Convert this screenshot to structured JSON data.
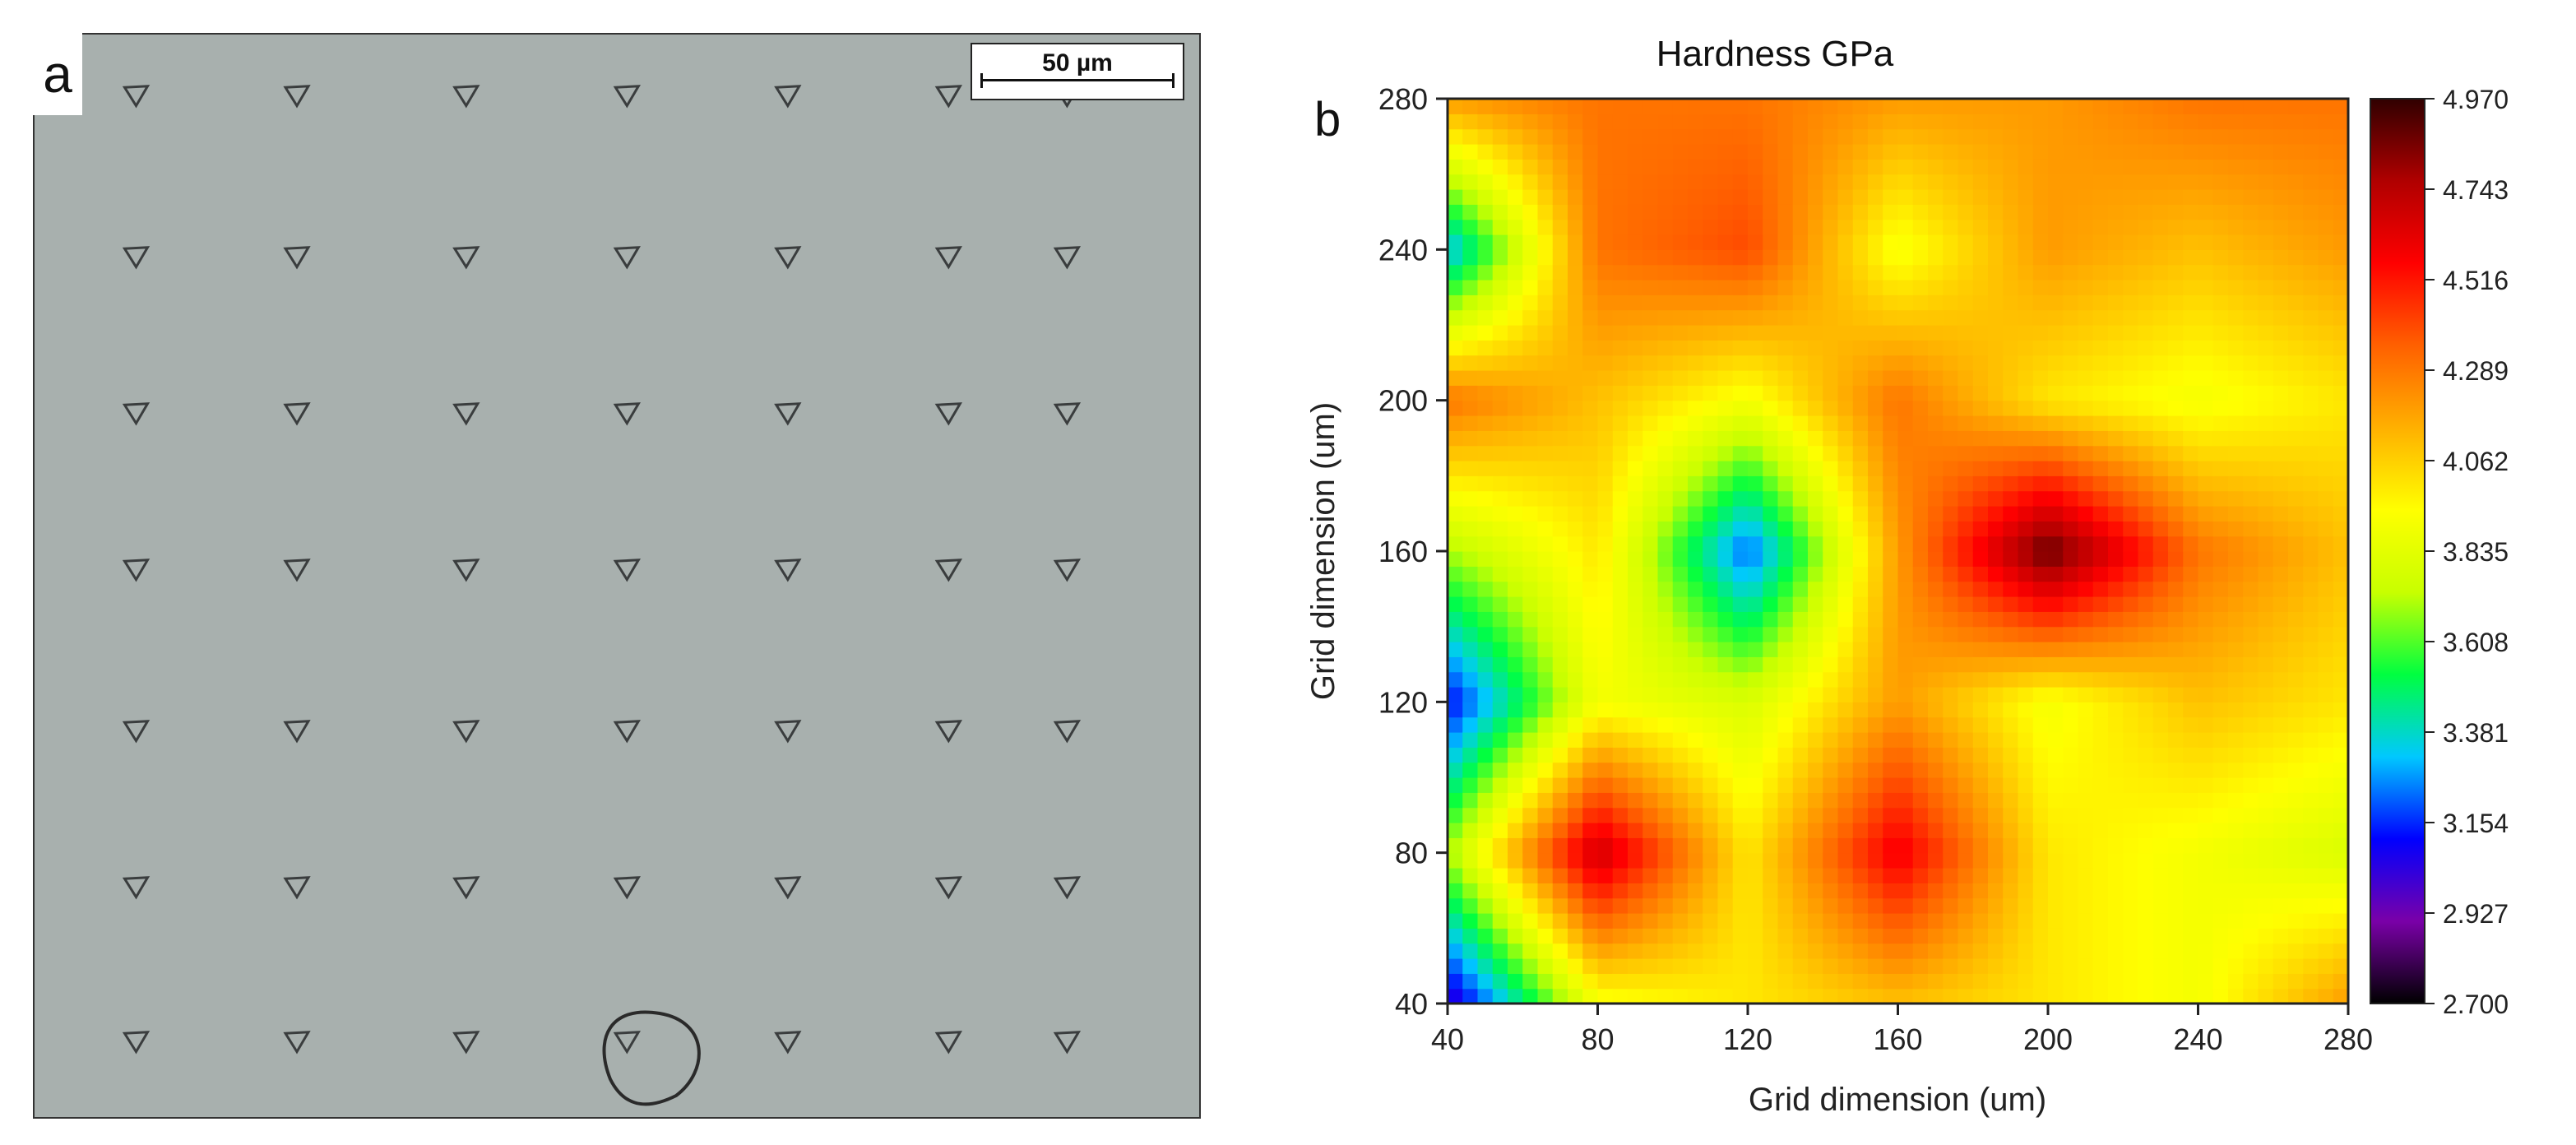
{
  "panel_a": {
    "label": "a",
    "scalebar_text": "50 µm"
  },
  "panel_b": {
    "label": "b"
  },
  "chart_data": {
    "type": "heatmap",
    "title": "Hardness GPa",
    "xlabel": "Grid dimension (um)",
    "ylabel": "Grid dimension (um)",
    "x": [
      40,
      80,
      120,
      160,
      200,
      240,
      280
    ],
    "y": [
      40,
      80,
      120,
      160,
      200,
      240,
      280
    ],
    "xlim": [
      40,
      280
    ],
    "ylim": [
      40,
      280
    ],
    "x_ticks": [
      "40",
      "80",
      "120",
      "160",
      "200",
      "240",
      "280"
    ],
    "y_ticks": [
      "40",
      "80",
      "120",
      "160",
      "200",
      "240",
      "280"
    ],
    "z": [
      [
        3.0,
        3.9,
        4.0,
        4.1,
        4.0,
        3.9,
        4.2
      ],
      [
        3.7,
        4.7,
        4.0,
        4.6,
        4.0,
        3.9,
        3.8
      ],
      [
        3.1,
        3.9,
        3.8,
        4.2,
        3.9,
        4.1,
        4.0
      ],
      [
        3.7,
        4.0,
        3.2,
        4.2,
        4.9,
        4.3,
        4.1
      ],
      [
        4.3,
        4.1,
        3.9,
        4.3,
        4.0,
        3.9,
        4.0
      ],
      [
        3.3,
        4.3,
        4.4,
        3.9,
        4.2,
        4.1,
        4.2
      ],
      [
        4.2,
        4.3,
        4.3,
        4.2,
        4.2,
        4.3,
        4.3
      ]
    ],
    "colorbar": {
      "min": 2.7,
      "max": 4.97,
      "tick_labels": [
        "4.970",
        "4.743",
        "4.516",
        "4.289",
        "4.062",
        "3.835",
        "3.608",
        "3.381",
        "3.154",
        "2.927",
        "2.700"
      ],
      "colors": [
        "#000000",
        "#7a00a8",
        "#0000ff",
        "#00c8ff",
        "#00ff40",
        "#c8ff00",
        "#ffff00",
        "#ffb000",
        "#ff6000",
        "#ff0000",
        "#b00000",
        "#300000"
      ]
    },
    "grid": false,
    "legend": "colorbar-right"
  }
}
